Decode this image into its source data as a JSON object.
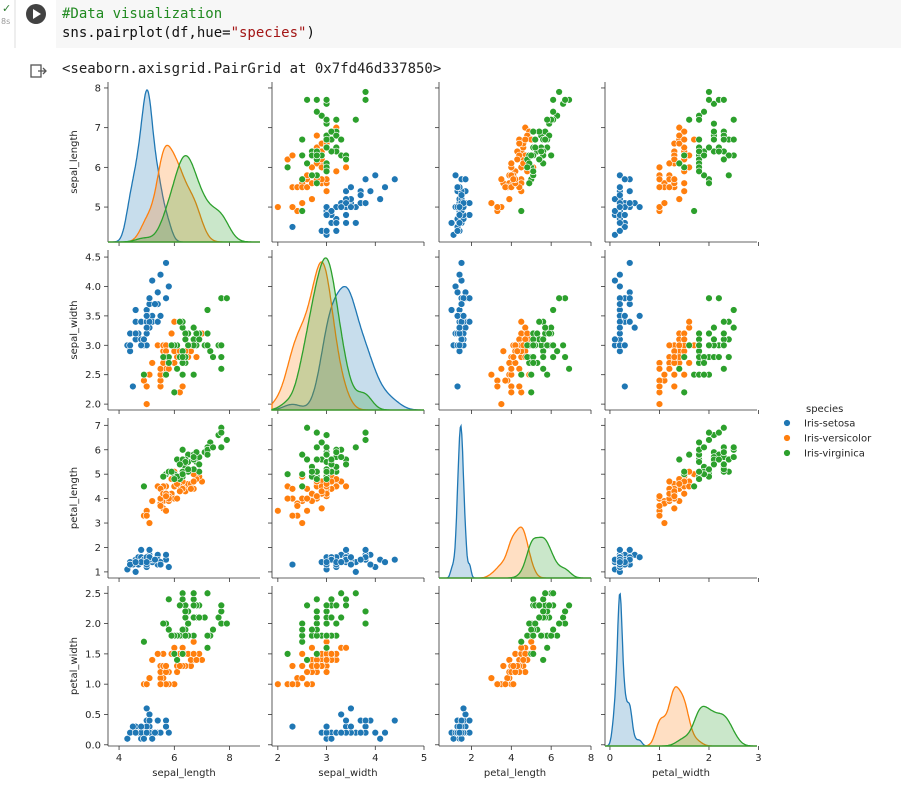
{
  "cell": {
    "status": "✓",
    "time": "8s",
    "code_comment": "#Data visualization",
    "code_call": [
      "sns.pairplot(df,hue=",
      "\"species\"",
      ")"
    ],
    "output": "<seaborn.axisgrid.PairGrid at 0x7fd46d337850>"
  },
  "chart_data": {
    "type": "pairplot",
    "legend_title": "species",
    "variables": [
      "sepal_length",
      "sepal_width",
      "petal_length",
      "petal_width"
    ],
    "axes": [
      {
        "xlim": [
          3.6,
          9.1
        ],
        "xticks": [
          4,
          6,
          8
        ],
        "ylim": [
          4.12,
          8.15
        ],
        "yticks": [
          5,
          6,
          7,
          8
        ]
      },
      {
        "xlim": [
          1.88,
          5.0
        ],
        "xticks": [
          2,
          3,
          4,
          5
        ],
        "ylim": [
          1.9,
          4.62
        ],
        "yticks": [
          {
            "value": 2.0,
            "label": "2.0"
          },
          {
            "value": 2.5,
            "label": "2.5"
          },
          {
            "value": 3.0,
            "label": "3.0"
          },
          {
            "value": 3.5,
            "label": "3.5"
          },
          {
            "value": 4.0,
            "label": "4.0"
          },
          {
            "value": 4.5,
            "label": "4.5"
          }
        ]
      },
      {
        "xlim": [
          0.37,
          8.0
        ],
        "xticks": [
          2,
          4,
          6,
          8
        ],
        "ylim": [
          0.75,
          7.3
        ],
        "yticks": [
          1,
          2,
          3,
          4,
          5,
          6,
          7
        ]
      },
      {
        "xlim": [
          -0.1,
          2.97
        ],
        "xticks": [
          0,
          1,
          2,
          3
        ],
        "ylim": [
          -0.02,
          2.62
        ],
        "yticks": [
          {
            "value": 0.0,
            "label": "0.0"
          },
          {
            "value": 0.5,
            "label": "0.5"
          },
          {
            "value": 1.0,
            "label": "1.0"
          },
          {
            "value": 1.5,
            "label": "1.5"
          },
          {
            "value": 2.0,
            "label": "2.0"
          },
          {
            "value": 2.5,
            "label": "2.5"
          }
        ]
      }
    ],
    "series": [
      {
        "name": "Iris-setosa",
        "color": "#1f77b4",
        "values": [
          [
            5.1,
            4.9,
            4.7,
            4.6,
            5.0,
            5.4,
            4.6,
            5.0,
            4.4,
            4.9,
            5.4,
            4.8,
            4.8,
            4.3,
            5.8,
            5.7,
            5.4,
            5.1,
            5.7,
            5.1,
            5.4,
            5.1,
            4.6,
            5.1,
            4.8,
            5.0,
            5.0,
            5.2,
            5.2,
            4.7,
            4.8,
            5.4,
            5.2,
            5.5,
            4.9,
            5.0,
            5.5,
            4.9,
            4.4,
            5.1,
            5.0,
            4.5,
            4.4,
            5.0,
            5.1,
            4.8,
            5.1,
            4.6,
            5.3,
            5.0
          ],
          [
            3.5,
            3.0,
            3.2,
            3.1,
            3.6,
            3.9,
            3.4,
            3.4,
            2.9,
            3.1,
            3.7,
            3.4,
            3.0,
            3.0,
            4.0,
            4.4,
            3.9,
            3.5,
            3.8,
            3.8,
            3.4,
            3.7,
            3.6,
            3.3,
            3.4,
            3.0,
            3.4,
            3.5,
            3.4,
            3.2,
            3.1,
            3.4,
            4.1,
            4.2,
            3.1,
            3.2,
            3.5,
            3.1,
            3.0,
            3.4,
            3.5,
            2.3,
            3.2,
            3.5,
            3.8,
            3.0,
            3.8,
            3.2,
            3.7,
            3.3
          ],
          [
            1.4,
            1.4,
            1.3,
            1.5,
            1.4,
            1.7,
            1.4,
            1.5,
            1.4,
            1.5,
            1.5,
            1.6,
            1.4,
            1.1,
            1.2,
            1.5,
            1.3,
            1.4,
            1.7,
            1.5,
            1.7,
            1.5,
            1.0,
            1.7,
            1.9,
            1.6,
            1.6,
            1.5,
            1.4,
            1.6,
            1.6,
            1.5,
            1.5,
            1.4,
            1.5,
            1.2,
            1.3,
            1.5,
            1.3,
            1.5,
            1.3,
            1.3,
            1.3,
            1.6,
            1.9,
            1.4,
            1.6,
            1.4,
            1.5,
            1.4
          ],
          [
            0.2,
            0.2,
            0.2,
            0.2,
            0.2,
            0.4,
            0.3,
            0.2,
            0.2,
            0.1,
            0.2,
            0.2,
            0.1,
            0.1,
            0.2,
            0.4,
            0.4,
            0.3,
            0.3,
            0.3,
            0.2,
            0.4,
            0.2,
            0.5,
            0.2,
            0.2,
            0.4,
            0.2,
            0.2,
            0.2,
            0.2,
            0.4,
            0.1,
            0.2,
            0.1,
            0.2,
            0.2,
            0.1,
            0.2,
            0.2,
            0.3,
            0.3,
            0.2,
            0.6,
            0.4,
            0.3,
            0.2,
            0.2,
            0.2,
            0.2
          ]
        ]
      },
      {
        "name": "Iris-versicolor",
        "color": "#ff7f0e",
        "values": [
          [
            7.0,
            6.4,
            6.9,
            5.5,
            6.5,
            5.7,
            6.3,
            4.9,
            6.6,
            5.2,
            5.0,
            5.9,
            6.0,
            6.1,
            5.6,
            6.7,
            5.6,
            5.8,
            6.2,
            5.6,
            5.9,
            6.1,
            6.3,
            6.1,
            6.4,
            6.6,
            6.8,
            6.7,
            6.0,
            5.7,
            5.5,
            5.5,
            5.8,
            6.0,
            5.4,
            6.0,
            6.7,
            6.3,
            5.6,
            5.5,
            5.5,
            6.1,
            5.8,
            5.0,
            5.6,
            5.7,
            5.7,
            6.2,
            5.1,
            5.7
          ],
          [
            3.2,
            3.2,
            3.1,
            2.3,
            2.8,
            2.8,
            3.3,
            2.4,
            2.9,
            2.7,
            2.0,
            3.0,
            2.2,
            2.9,
            2.9,
            3.1,
            3.0,
            2.7,
            2.2,
            2.5,
            3.2,
            2.8,
            2.5,
            2.8,
            2.9,
            3.0,
            2.8,
            3.0,
            2.9,
            2.6,
            2.4,
            2.4,
            2.7,
            2.7,
            3.0,
            3.4,
            3.1,
            2.3,
            3.0,
            2.5,
            2.6,
            3.0,
            2.6,
            2.3,
            2.7,
            3.0,
            2.9,
            2.9,
            2.5,
            2.8
          ],
          [
            4.7,
            4.5,
            4.9,
            4.0,
            4.6,
            4.5,
            4.7,
            3.3,
            4.6,
            3.9,
            3.5,
            4.2,
            4.0,
            4.7,
            3.6,
            4.4,
            4.5,
            4.1,
            4.5,
            3.9,
            4.8,
            4.0,
            4.9,
            4.7,
            4.3,
            4.4,
            4.8,
            5.0,
            4.5,
            3.5,
            3.8,
            3.7,
            3.9,
            5.1,
            4.5,
            4.5,
            4.7,
            4.4,
            4.1,
            4.0,
            4.4,
            4.6,
            4.0,
            3.3,
            4.2,
            4.2,
            4.2,
            4.3,
            3.0,
            4.1
          ],
          [
            1.4,
            1.5,
            1.5,
            1.3,
            1.5,
            1.3,
            1.6,
            1.0,
            1.3,
            1.4,
            1.0,
            1.5,
            1.0,
            1.4,
            1.3,
            1.4,
            1.5,
            1.0,
            1.5,
            1.1,
            1.8,
            1.3,
            1.5,
            1.2,
            1.3,
            1.4,
            1.4,
            1.7,
            1.5,
            1.0,
            1.1,
            1.0,
            1.2,
            1.6,
            1.5,
            1.6,
            1.5,
            1.3,
            1.3,
            1.3,
            1.2,
            1.4,
            1.2,
            1.0,
            1.3,
            1.2,
            1.3,
            1.3,
            1.1,
            1.3
          ]
        ]
      },
      {
        "name": "Iris-virginica",
        "color": "#2ca02c",
        "values": [
          [
            6.3,
            5.8,
            7.1,
            6.3,
            6.5,
            7.6,
            4.9,
            7.3,
            6.7,
            7.2,
            6.5,
            6.4,
            6.8,
            5.7,
            5.8,
            6.4,
            6.5,
            7.7,
            7.7,
            6.0,
            6.9,
            5.6,
            7.7,
            6.3,
            6.7,
            7.2,
            6.2,
            6.1,
            6.4,
            7.2,
            7.4,
            7.9,
            6.4,
            6.3,
            6.1,
            7.7,
            6.3,
            6.4,
            6.0,
            6.9,
            6.7,
            6.9,
            5.8,
            6.8,
            6.7,
            6.7,
            6.3,
            6.5,
            6.2,
            5.9
          ],
          [
            3.3,
            2.7,
            3.0,
            2.9,
            3.0,
            3.0,
            2.5,
            2.9,
            2.5,
            3.6,
            3.2,
            2.7,
            3.0,
            2.5,
            2.8,
            3.2,
            3.0,
            3.8,
            2.6,
            2.2,
            3.2,
            2.8,
            2.8,
            2.7,
            3.3,
            3.2,
            2.8,
            3.0,
            2.8,
            3.0,
            2.8,
            3.8,
            2.8,
            2.8,
            2.6,
            3.0,
            3.4,
            3.1,
            3.0,
            3.1,
            3.1,
            3.1,
            2.7,
            3.2,
            3.3,
            3.0,
            2.5,
            3.0,
            3.4,
            3.0
          ],
          [
            6.0,
            5.1,
            5.9,
            5.6,
            5.8,
            6.6,
            4.5,
            6.3,
            5.8,
            6.1,
            5.1,
            5.3,
            5.5,
            5.0,
            5.1,
            5.3,
            5.5,
            6.7,
            6.9,
            5.0,
            5.7,
            4.9,
            6.7,
            4.9,
            5.7,
            6.0,
            4.8,
            4.9,
            5.6,
            5.8,
            6.1,
            6.4,
            5.6,
            5.1,
            5.6,
            6.1,
            5.6,
            5.5,
            4.8,
            5.4,
            5.6,
            5.1,
            5.1,
            5.9,
            5.7,
            5.2,
            5.0,
            5.2,
            5.4,
            5.1
          ],
          [
            2.5,
            1.9,
            2.1,
            1.8,
            2.2,
            2.1,
            1.7,
            1.8,
            1.8,
            2.5,
            2.0,
            1.9,
            2.1,
            2.0,
            2.4,
            2.3,
            1.8,
            2.2,
            2.3,
            1.5,
            2.3,
            2.0,
            2.0,
            1.8,
            2.1,
            1.8,
            1.8,
            1.8,
            2.1,
            1.6,
            1.9,
            2.0,
            2.2,
            1.5,
            1.4,
            2.3,
            2.4,
            1.8,
            1.8,
            2.1,
            2.4,
            2.3,
            1.9,
            2.3,
            2.5,
            2.3,
            1.9,
            2.0,
            2.3,
            1.8
          ]
        ]
      }
    ]
  }
}
